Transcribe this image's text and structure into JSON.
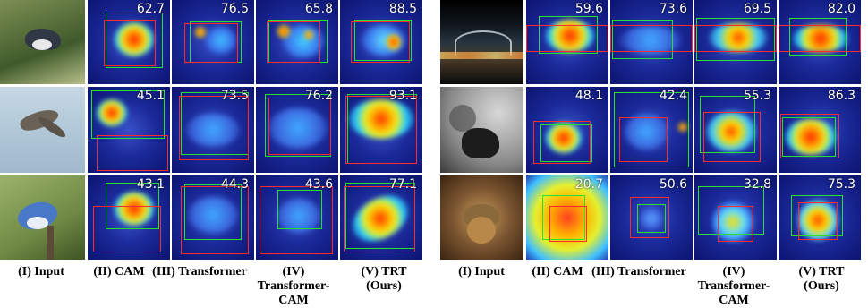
{
  "left_panel": {
    "labels": [
      "(I) Input",
      "(II) CAM",
      "(III) Transformer",
      "(IV) Transformer-CAM",
      "(V) TRT (Ours)"
    ],
    "rows": [
      {
        "scores": [
          "62.7",
          "76.5",
          "65.8",
          "88.5"
        ]
      },
      {
        "scores": [
          "45.1",
          "73.5",
          "76.2",
          "93.1"
        ]
      },
      {
        "scores": [
          "43.1",
          "44.3",
          "43.6",
          "77.1"
        ]
      }
    ]
  },
  "right_panel": {
    "labels": [
      "(I) Input",
      "(II) CAM",
      "(III) Transformer",
      "(IV) Transformer-CAM",
      "(V) TRT (Ours)"
    ],
    "rows": [
      {
        "scores": [
          "59.6",
          "73.6",
          "69.5",
          "82.0"
        ]
      },
      {
        "scores": [
          "48.1",
          "42.4",
          "55.3",
          "86.3"
        ]
      },
      {
        "scores": [
          "20.7",
          "50.6",
          "32.8",
          "75.3"
        ]
      }
    ]
  },
  "colors": {
    "gt_box": "#29e02a",
    "pred_box": "#ff2a2a",
    "heat_low": "#0c1470",
    "heat_high": "#ff2a00"
  }
}
